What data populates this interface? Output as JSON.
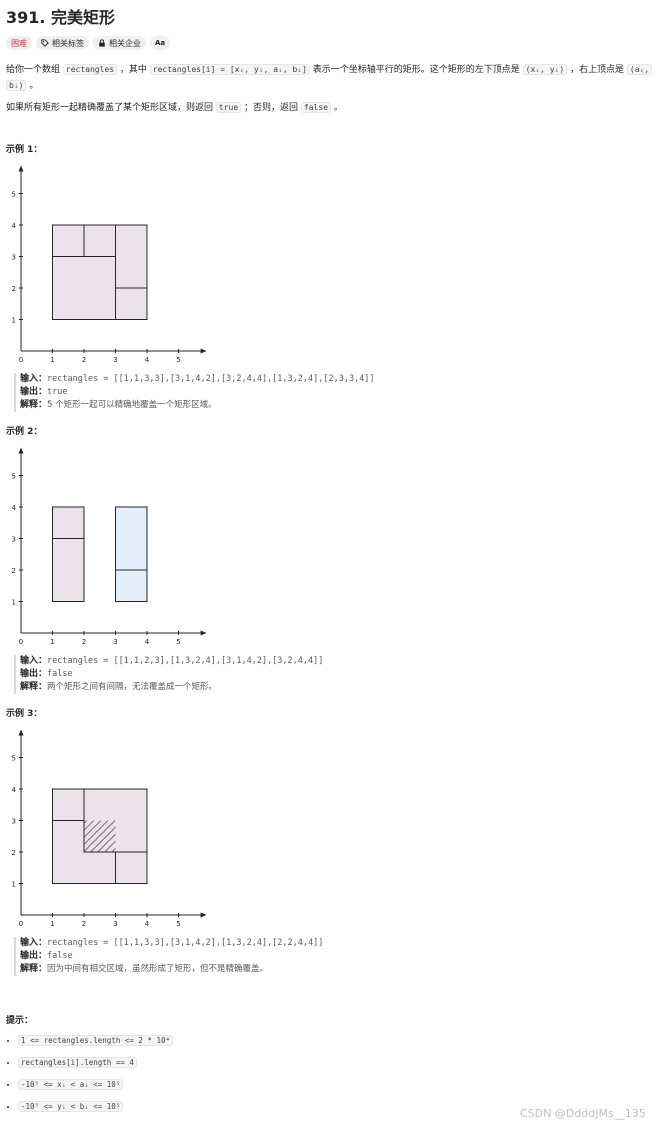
{
  "title": "391. 完美矩形",
  "tags": {
    "difficulty": "困难",
    "related_tags": "相关标签",
    "related_companies": "相关企业",
    "font_toggle": "Aa"
  },
  "description": {
    "p1_part1": "给你一个数组 ",
    "p1_code1": "rectangles",
    "p1_part2": " ，其中 ",
    "p1_code2": "rectangles[i] = [xᵢ, yᵢ, aᵢ, bᵢ]",
    "p1_part3": " 表示一个坐标轴平行的矩形。这个矩形的左下顶点是 ",
    "p1_code3": "(xᵢ, yᵢ)",
    "p1_part4": " ，右上顶点是 ",
    "p1_code4a": "(aᵢ,",
    "p1_code4b": "bᵢ)",
    "p1_part5": " 。",
    "p2_part1": "如果所有矩形一起精确覆盖了某个矩形区域，则返回 ",
    "p2_code1": "true",
    "p2_part2": " ；否则，返回 ",
    "p2_code2": "false",
    "p2_part3": " 。"
  },
  "examples": [
    {
      "title": "示例 1：",
      "input_label": "输入：",
      "input": "rectangles = [[1,1,3,3],[3,1,4,2],[3,2,4,4],[1,3,2,4],[2,3,3,4]]",
      "output_label": "输出：",
      "output": "true",
      "explain_label": "解释：",
      "explain": "5 个矩形一起可以精确地覆盖一个矩形区域。"
    },
    {
      "title": "示例 2：",
      "input_label": "输入：",
      "input": "rectangles = [[1,1,2,3],[1,3,2,4],[3,1,4,2],[3,2,4,4]]",
      "output_label": "输出：",
      "output": "false",
      "explain_label": "解释：",
      "explain": "两个矩形之间有间隔，无法覆盖成一个矩形。"
    },
    {
      "title": "示例 3：",
      "input_label": "输入：",
      "input": "rectangles = [[1,1,3,3],[3,1,4,2],[1,3,2,4],[2,2,4,4]]",
      "output_label": "输出：",
      "output": "false",
      "explain_label": "解释：",
      "explain": "因为中间有相交区域，虽然形成了矩形，但不是精确覆盖。"
    }
  ],
  "chart_data": [
    {
      "type": "diagram",
      "axis_ticks": [
        "0",
        "1",
        "2",
        "3",
        "4",
        "5"
      ],
      "rects": [
        [
          1,
          1,
          3,
          3
        ],
        [
          3,
          1,
          4,
          2
        ],
        [
          3,
          2,
          4,
          4
        ],
        [
          1,
          3,
          2,
          4
        ],
        [
          2,
          3,
          3,
          4
        ]
      ],
      "fill": [
        "#ebe2ec"
      ],
      "hatch": []
    },
    {
      "type": "diagram",
      "axis_ticks": [
        "0",
        "1",
        "2",
        "3",
        "4",
        "5"
      ],
      "rects": [
        [
          1,
          1,
          2,
          3
        ],
        [
          1,
          3,
          2,
          4
        ],
        [
          3,
          1,
          4,
          2
        ],
        [
          3,
          2,
          4,
          4
        ]
      ],
      "fill": [
        "#ebe2ec",
        "#ebe2ec",
        "#e2eefa",
        "#e2eefa"
      ],
      "hatch": []
    },
    {
      "type": "diagram",
      "axis_ticks": [
        "0",
        "1",
        "2",
        "3",
        "4",
        "5"
      ],
      "rects": [
        [
          1,
          1,
          3,
          3
        ],
        [
          3,
          1,
          4,
          2
        ],
        [
          1,
          3,
          2,
          4
        ],
        [
          2,
          2,
          4,
          4
        ]
      ],
      "fill": [
        "#ebe2ec"
      ],
      "hatch": [
        [
          2,
          2,
          3,
          3
        ]
      ]
    }
  ],
  "hints": {
    "title": "提示：",
    "items": [
      "1 <= rectangles.length <= 2 * 10⁴",
      "rectangles[i].length == 4",
      "-10⁵ <= xᵢ < aᵢ <= 10⁵",
      "-10⁵ <= yᵢ < bᵢ <= 10⁵"
    ]
  },
  "watermark": "CSDN @DdddJMs__135",
  "colors": {
    "hard": "#e0314b",
    "rect_fill": "#ebe2ec",
    "rect_fill_blue": "#e2eefa"
  }
}
